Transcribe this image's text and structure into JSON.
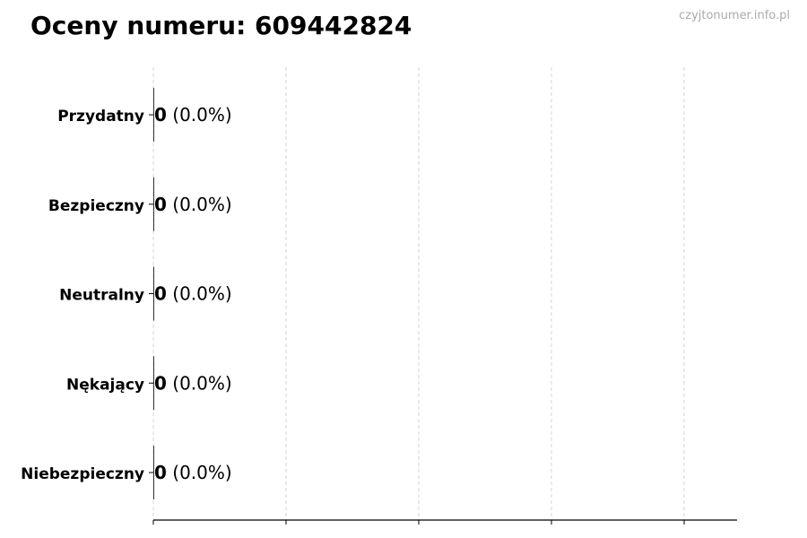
{
  "chart_data": {
    "type": "bar",
    "orientation": "horizontal",
    "title": "Oceny numeru: 609442824",
    "categories": [
      "Przydatny",
      "Bezpieczny",
      "Neutralny",
      "Nękający",
      "Niebezpieczny"
    ],
    "values": [
      0,
      0,
      0,
      0,
      0
    ],
    "labels": [
      "(0.0%)",
      "(0.0%)",
      "(0.0%)",
      "(0.0%)",
      "(0.0%)"
    ],
    "grid": "vertical dashed",
    "xtick_count": 5,
    "colors": {
      "bar_edge": "#000000",
      "grid": "#cccccc",
      "watermark": "#aaaaaa"
    }
  },
  "watermark": "czyjtonumer.info.pl"
}
